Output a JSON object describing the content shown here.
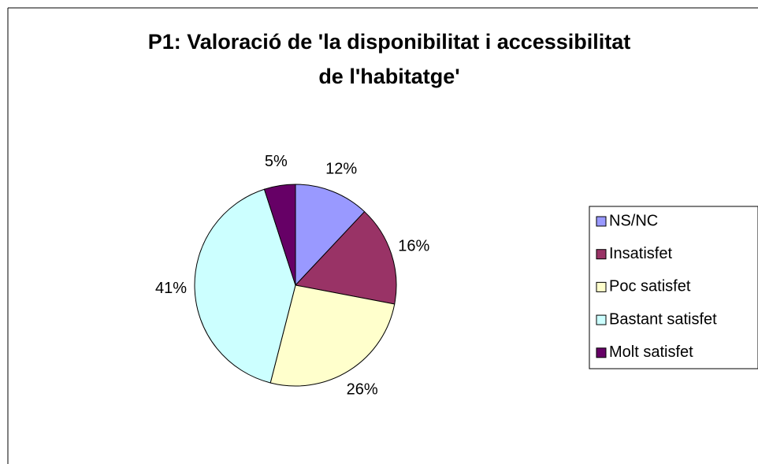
{
  "chart_data": {
    "type": "pie",
    "title": [
      "P1: Valoració de 'la disponibilitat i accessibilitat",
      "de l'habitatge'"
    ],
    "categories": [
      "NS/NC",
      "Insatisfet",
      "Poc satisfet",
      "Bastant satisfet",
      "Molt satisfet"
    ],
    "values": [
      12,
      16,
      26,
      41,
      5
    ],
    "value_labels": [
      "12%",
      "16%",
      "26%",
      "41%",
      "5%"
    ],
    "colors": [
      "#9999ff",
      "#993366",
      "#ffffcc",
      "#ccffff",
      "#660066"
    ],
    "legend": "right"
  }
}
